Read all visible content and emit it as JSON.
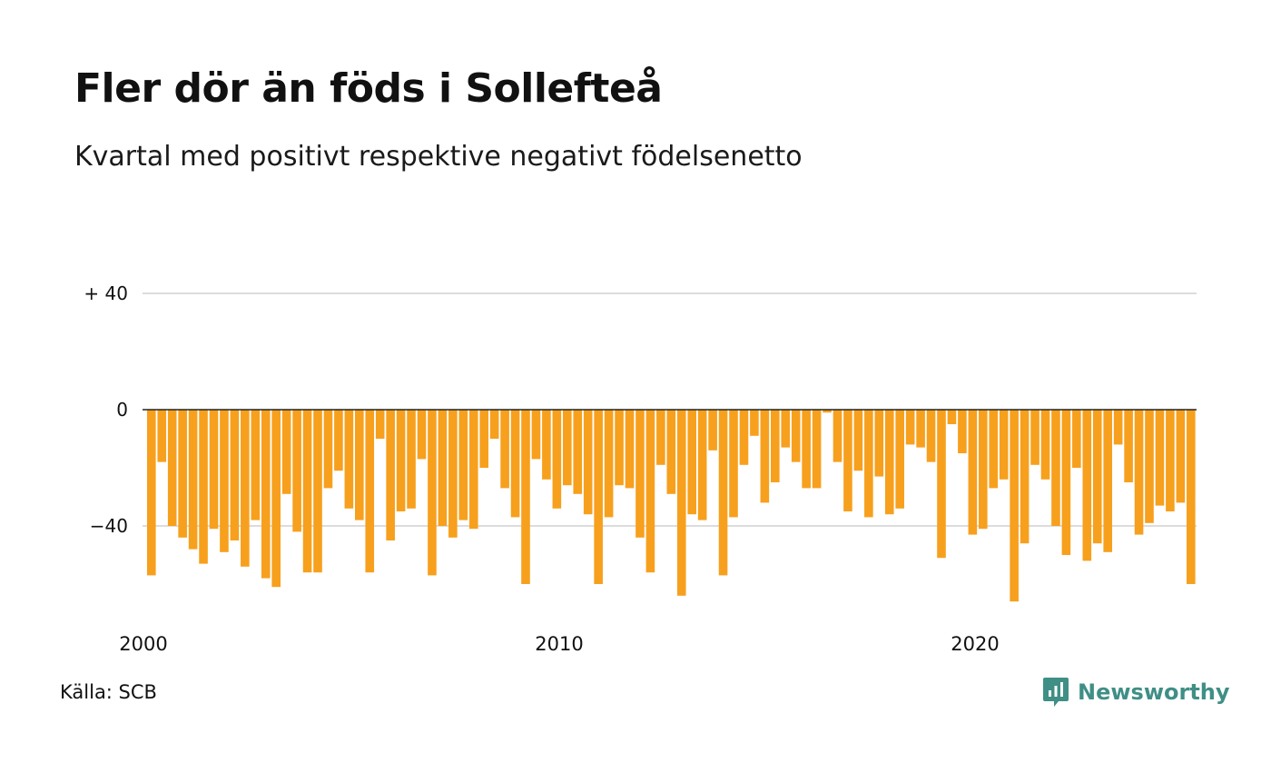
{
  "title": "Fler dör än föds i Sollefteå",
  "subtitle": "Kvartal med positivt respektive negativt födelsenetto",
  "source": "Källa: SCB",
  "brand": {
    "name": "Newsworthy",
    "color": "#3f8f86",
    "icon": "bar-chart-speech-bubble-icon"
  },
  "chart_data": {
    "type": "bar",
    "bar_color": "#f7a01d",
    "grid": true,
    "ylim": [
      -70,
      45
    ],
    "y_ticks": [
      {
        "value": 40,
        "label": "+ 40"
      },
      {
        "value": 0,
        "label": "0"
      },
      {
        "value": -40,
        "label": "−40"
      }
    ],
    "x_ticks": [
      {
        "index": 0,
        "label": "2000"
      },
      {
        "index": 40,
        "label": "2010"
      },
      {
        "index": 80,
        "label": "2020"
      }
    ],
    "start": "2000 Q1",
    "values": [
      -57,
      -18,
      -40,
      -44,
      -48,
      -53,
      -41,
      -49,
      -45,
      -54,
      -38,
      -58,
      -61,
      -29,
      -42,
      -56,
      -56,
      -27,
      -21,
      -34,
      -38,
      -56,
      -10,
      -45,
      -35,
      -34,
      -17,
      -57,
      -40,
      -44,
      -38,
      -41,
      -20,
      -10,
      -27,
      -37,
      -60,
      -17,
      -24,
      -34,
      -26,
      -29,
      -36,
      -60,
      -37,
      -26,
      -27,
      -44,
      -56,
      -19,
      -29,
      -64,
      -36,
      -38,
      -14,
      -57,
      -37,
      -19,
      -9,
      -32,
      -25,
      -13,
      -18,
      -27,
      -27,
      -1,
      -18,
      -35,
      -21,
      -37,
      -23,
      -36,
      -34,
      -12,
      -13,
      -18,
      -51,
      -5,
      -15,
      -43,
      -41,
      -27,
      -24,
      -66,
      -46,
      -19,
      -24,
      -40,
      -50,
      -20,
      -52,
      -46,
      -49,
      -12,
      -25,
      -43,
      -39,
      -33,
      -35,
      -32,
      -60
    ]
  }
}
